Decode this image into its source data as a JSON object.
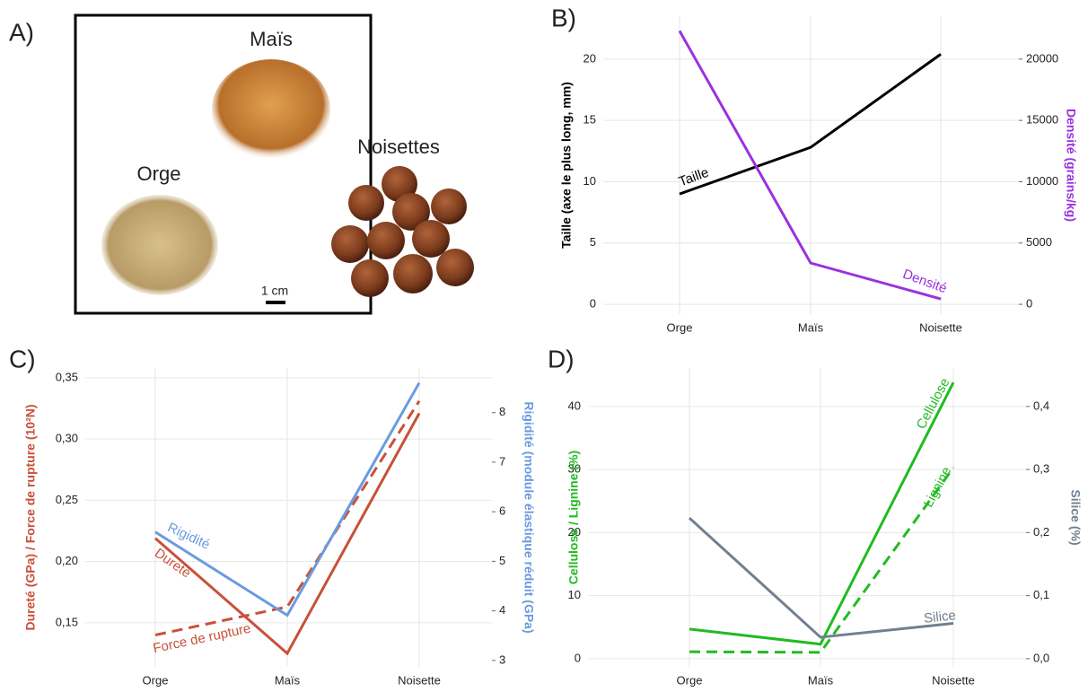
{
  "photo_panel": {
    "label": "A)",
    "items": [
      "Maïs",
      "Noisettes",
      "Orge"
    ],
    "scale_bar": "1 cm"
  },
  "chart_data": [
    {
      "type": "line",
      "panel_label": "B)",
      "categories": [
        "Orge",
        "Maïs",
        "Noisette"
      ],
      "ylabel": "Taille (axe le plus long, mm)",
      "y2label": "Densité (grains/kg)",
      "ylim": [
        -0.8,
        23.5
      ],
      "yticks": [
        0,
        5,
        10,
        15,
        20
      ],
      "y2lim": [
        -800,
        23500
      ],
      "y2ticks": [
        0,
        5000,
        10000,
        15000,
        20000
      ],
      "grid": true,
      "series": [
        {
          "name": "Taille",
          "color": "#000000",
          "values": [
            9.0,
            12.8,
            20.4
          ]
        },
        {
          "name": "Densité",
          "color": "#9b30e0",
          "axis": "y2",
          "values": [
            22300,
            3370,
            440
          ]
        }
      ]
    },
    {
      "type": "line",
      "panel_label": "C)",
      "categories": [
        "Orge",
        "Maïs",
        "Noisette"
      ],
      "ylabel": "Dureté (GPa) / Force de rupture (10²N)",
      "y2label": "Rigidité (module élastique réduit (GPa)",
      "ylim": [
        0.114,
        0.358
      ],
      "yticks": [
        {
          "value": 0.15,
          "label": "0,15"
        },
        {
          "value": 0.2,
          "label": "0,20"
        },
        {
          "value": 0.25,
          "label": "0,25"
        },
        {
          "value": 0.3,
          "label": "0,30"
        },
        {
          "value": 0.35,
          "label": "0,35"
        }
      ],
      "y2lim": [
        2.87,
        8.9
      ],
      "y2ticks": [
        3,
        4,
        5,
        6,
        7,
        8
      ],
      "grid": true,
      "series": [
        {
          "name": "Dureté",
          "color": "#c8513a",
          "values": [
            0.219,
            0.125,
            0.321
          ]
        },
        {
          "name": "Force de rupture",
          "color": "#c8513a",
          "dashed": true,
          "values": [
            0.14,
            0.163,
            0.331
          ]
        },
        {
          "name": "Rigidité",
          "color": "#6a9be0",
          "axis": "y2",
          "values": [
            5.59,
            3.91,
            8.6
          ]
        }
      ]
    },
    {
      "type": "line",
      "panel_label": "D)",
      "categories": [
        "Orge",
        "Maïs",
        "Noisette"
      ],
      "ylabel": "Cellulose / Lignine (%)",
      "y2label": "Silice (%)",
      "ylim": [
        -1.3,
        46.1
      ],
      "yticks": [
        0,
        10,
        20,
        30,
        40
      ],
      "y2lim": [
        -0.013,
        0.461
      ],
      "y2ticks": [
        {
          "value": 0,
          "label": "0,0"
        },
        {
          "value": 0.1,
          "label": "0,1"
        },
        {
          "value": 0.2,
          "label": "0,2"
        },
        {
          "value": 0.3,
          "label": "0,3"
        },
        {
          "value": 0.4,
          "label": "0,4"
        }
      ],
      "grid": true,
      "series": [
        {
          "name": "Cellulose",
          "color": "#22bb22",
          "values": [
            4.7,
            2.3,
            43.8
          ]
        },
        {
          "name": "Lignine",
          "color": "#22bb22",
          "dashed": true,
          "values": [
            1.1,
            1.0,
            30.3
          ]
        },
        {
          "name": "Silice",
          "color": "#708090",
          "axis": "y2",
          "values": [
            0.223,
            0.034,
            0.056
          ]
        }
      ]
    }
  ]
}
